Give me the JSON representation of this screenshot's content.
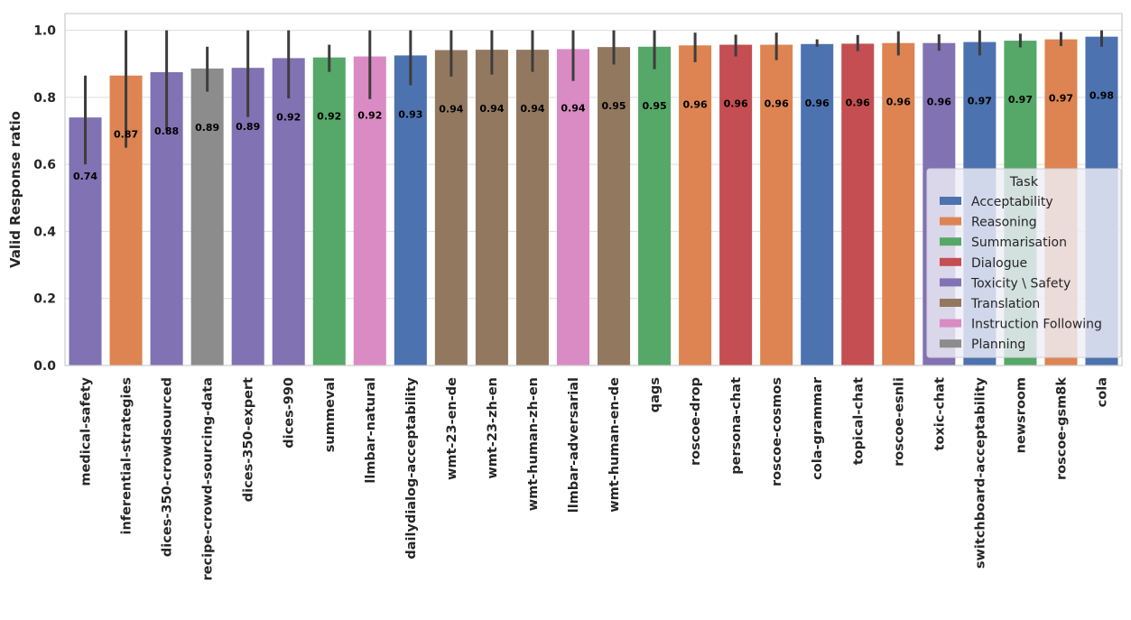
{
  "chart_data": {
    "type": "bar",
    "title": "",
    "xlabel": "",
    "ylabel": "Valid Response ratio",
    "ylim": [
      0,
      1.05
    ],
    "yticks": [
      "0.0",
      "0.2",
      "0.4",
      "0.6",
      "0.8",
      "1.0"
    ],
    "grid": true,
    "legend": {
      "title": "Task",
      "placement": "lower-right",
      "entries": [
        {
          "name": "Acceptability",
          "color": "#4C72B0"
        },
        {
          "name": "Reasoning",
          "color": "#DD8452"
        },
        {
          "name": "Summarisation",
          "color": "#55A868"
        },
        {
          "name": "Dialogue",
          "color": "#C44E52"
        },
        {
          "name": "Toxicity \\ Safety",
          "color": "#8172B3"
        },
        {
          "name": "Translation",
          "color": "#937860"
        },
        {
          "name": "Instruction Following",
          "color": "#DA8BC3"
        },
        {
          "name": "Planning",
          "color": "#8C8C8C"
        }
      ]
    },
    "bars": [
      {
        "category": "medical-safety",
        "task": "Toxicity \\ Safety",
        "value": 0.74,
        "label": "0.74",
        "ci": [
          0.6,
          0.865
        ]
      },
      {
        "category": "inferential-strategies",
        "task": "Reasoning",
        "value": 0.865,
        "label": "0.87",
        "ci": [
          0.65,
          1.0
        ]
      },
      {
        "category": "dices-350-crowdsourced",
        "task": "Toxicity \\ Safety",
        "value": 0.875,
        "label": "0.88",
        "ci": [
          0.7,
          1.0
        ]
      },
      {
        "category": "recipe-crowd-sourcing-data",
        "task": "Planning",
        "value": 0.886,
        "label": "0.89",
        "ci": [
          0.817,
          0.951
        ]
      },
      {
        "category": "dices-350-expert",
        "task": "Toxicity \\ Safety",
        "value": 0.888,
        "label": "0.89",
        "ci": [
          0.741,
          1.0
        ]
      },
      {
        "category": "dices-990",
        "task": "Toxicity \\ Safety",
        "value": 0.917,
        "label": "0.92",
        "ci": [
          0.797,
          1.0
        ]
      },
      {
        "category": "summeval",
        "task": "Summarisation",
        "value": 0.919,
        "label": "0.92",
        "ci": [
          0.876,
          0.957
        ]
      },
      {
        "category": "llmbar-natural",
        "task": "Instruction Following",
        "value": 0.922,
        "label": "0.92",
        "ci": [
          0.795,
          1.0
        ]
      },
      {
        "category": "dailydialog-acceptability",
        "task": "Acceptability",
        "value": 0.925,
        "label": "0.93",
        "ci": [
          0.836,
          1.0
        ]
      },
      {
        "category": "wmt-23-en-de",
        "task": "Translation",
        "value": 0.941,
        "label": "0.94",
        "ci": [
          0.862,
          1.0
        ]
      },
      {
        "category": "wmt-23-zh-en",
        "task": "Translation",
        "value": 0.942,
        "label": "0.94",
        "ci": [
          0.868,
          1.0
        ]
      },
      {
        "category": "wmt-human-zh-en",
        "task": "Translation",
        "value": 0.942,
        "label": "0.94",
        "ci": [
          0.876,
          1.0
        ]
      },
      {
        "category": "llmbar-adversarial",
        "task": "Instruction Following",
        "value": 0.944,
        "label": "0.94",
        "ci": [
          0.849,
          1.0
        ]
      },
      {
        "category": "wmt-human-en-de",
        "task": "Translation",
        "value": 0.95,
        "label": "0.95",
        "ci": [
          0.898,
          1.0
        ]
      },
      {
        "category": "qags",
        "task": "Summarisation",
        "value": 0.951,
        "label": "0.95",
        "ci": [
          0.884,
          1.0
        ]
      },
      {
        "category": "roscoe-drop",
        "task": "Reasoning",
        "value": 0.955,
        "label": "0.96",
        "ci": [
          0.905,
          0.993
        ]
      },
      {
        "category": "persona-chat",
        "task": "Dialogue",
        "value": 0.957,
        "label": "0.96",
        "ci": [
          0.922,
          0.987
        ]
      },
      {
        "category": "roscoe-cosmos",
        "task": "Reasoning",
        "value": 0.957,
        "label": "0.96",
        "ci": [
          0.911,
          0.993
        ]
      },
      {
        "category": "cola-grammar",
        "task": "Acceptability",
        "value": 0.959,
        "label": "0.96",
        "ci": [
          0.951,
          0.973
        ]
      },
      {
        "category": "topical-chat",
        "task": "Dialogue",
        "value": 0.96,
        "label": "0.96",
        "ci": [
          0.938,
          0.986
        ]
      },
      {
        "category": "roscoe-esnli",
        "task": "Reasoning",
        "value": 0.962,
        "label": "0.96",
        "ci": [
          0.925,
          0.997
        ]
      },
      {
        "category": "toxic-chat",
        "task": "Toxicity \\ Safety",
        "value": 0.962,
        "label": "0.96",
        "ci": [
          0.939,
          0.988
        ]
      },
      {
        "category": "switchboard-acceptability",
        "task": "Acceptability",
        "value": 0.965,
        "label": "0.97",
        "ci": [
          0.925,
          1.0
        ]
      },
      {
        "category": "newsroom",
        "task": "Summarisation",
        "value": 0.969,
        "label": "0.97",
        "ci": [
          0.949,
          0.99
        ]
      },
      {
        "category": "roscoe-gsm8k",
        "task": "Reasoning",
        "value": 0.973,
        "label": "0.97",
        "ci": [
          0.953,
          0.995
        ]
      },
      {
        "category": "cola",
        "task": "Acceptability",
        "value": 0.981,
        "label": "0.98",
        "ci": [
          0.951,
          1.0
        ]
      }
    ]
  }
}
